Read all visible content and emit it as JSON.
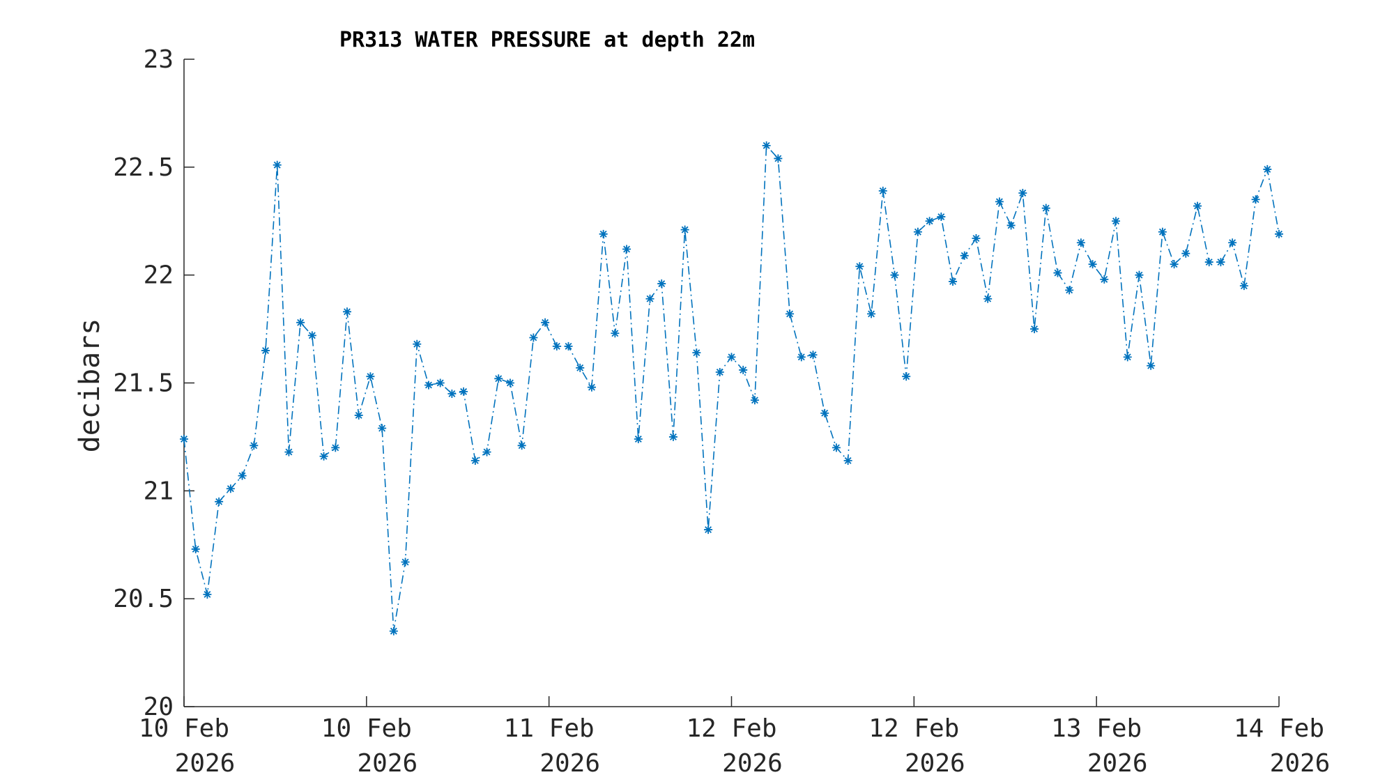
{
  "chart_data": {
    "type": "line",
    "title": "PR313 WATER PRESSURE at depth 22m",
    "ylabel": "decibars",
    "xlabel": "",
    "color": "#0072bd",
    "line_style": "dash-dot",
    "marker": "asterisk",
    "ylim": [
      20,
      23
    ],
    "xlim": [
      0,
      6
    ],
    "yticks": [
      20,
      20.5,
      21,
      21.5,
      22,
      22.5,
      23
    ],
    "ytick_labels": [
      "20",
      "20.5",
      "21",
      "21.5",
      "22",
      "22.5",
      "23"
    ],
    "xticks": [
      0,
      1,
      2,
      3,
      4,
      5,
      6
    ],
    "xtick_labels": [
      {
        "line1": "10 Feb",
        "line2": "2026"
      },
      {
        "line1": "10 Feb",
        "line2": "2026"
      },
      {
        "line1": "11 Feb",
        "line2": "2026"
      },
      {
        "line1": "12 Feb",
        "line2": "2026"
      },
      {
        "line1": "12 Feb",
        "line2": "2026"
      },
      {
        "line1": "13 Feb",
        "line2": "2026"
      },
      {
        "line1": "14 Feb",
        "line2": "2026"
      }
    ],
    "values": [
      21.24,
      20.73,
      20.52,
      20.95,
      21.01,
      21.07,
      21.21,
      21.65,
      22.51,
      21.18,
      21.78,
      21.72,
      21.16,
      21.2,
      21.83,
      21.35,
      21.53,
      21.29,
      20.35,
      20.67,
      21.68,
      21.49,
      21.5,
      21.45,
      21.46,
      21.14,
      21.18,
      21.52,
      21.5,
      21.21,
      21.71,
      21.78,
      21.67,
      21.67,
      21.57,
      21.48,
      22.19,
      21.73,
      22.12,
      21.24,
      21.89,
      21.96,
      21.25,
      22.21,
      21.64,
      20.82,
      21.55,
      21.62,
      21.56,
      21.42,
      22.6,
      22.54,
      21.82,
      21.62,
      21.63,
      21.36,
      21.2,
      21.14,
      22.04,
      21.82,
      22.39,
      22.0,
      21.53,
      22.2,
      22.25,
      22.27,
      21.97,
      22.09,
      22.17,
      21.89,
      22.34,
      22.23,
      22.38,
      21.75,
      22.31,
      22.01,
      21.93,
      22.15,
      22.05,
      21.98,
      22.25,
      21.62,
      22.0,
      21.58,
      22.2,
      22.05,
      22.1,
      22.32,
      22.06,
      22.06,
      22.15,
      21.95,
      22.35,
      22.49,
      22.19
    ]
  }
}
